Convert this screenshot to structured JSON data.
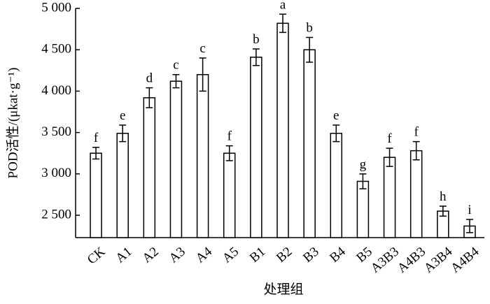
{
  "chart_data": {
    "type": "bar",
    "x_label": "处理组",
    "y_label": "POD活性/(μkat·g⁻¹)",
    "categories": [
      "CK",
      "A1",
      "A2",
      "A3",
      "A4",
      "A5",
      "B1",
      "B2",
      "B3",
      "B4",
      "B5",
      "A3B3",
      "A4B3",
      "A3B4",
      "A4B4"
    ],
    "values": [
      3250,
      3490,
      3920,
      4120,
      4200,
      3250,
      4410,
      4820,
      4500,
      3490,
      2910,
      3200,
      3280,
      2550,
      2370
    ],
    "errors": [
      70,
      100,
      120,
      80,
      200,
      90,
      100,
      110,
      150,
      100,
      90,
      110,
      110,
      60,
      80
    ],
    "letters": [
      "f",
      "e",
      "d",
      "c",
      "c",
      "f",
      "b",
      "a",
      "b",
      "e",
      "g",
      "f",
      "f",
      "h",
      "i"
    ],
    "color": "#ffffff",
    "ylim": [
      2230,
      5000
    ],
    "yticks": [
      {
        "value": 2500,
        "label": "2 500"
      },
      {
        "value": 3000,
        "label": "3 000"
      },
      {
        "value": 3500,
        "label": "3 500"
      },
      {
        "value": 4000,
        "label": "4 000"
      },
      {
        "value": 4500,
        "label": "4 500"
      },
      {
        "value": 5000,
        "label": "5 000"
      }
    ]
  }
}
